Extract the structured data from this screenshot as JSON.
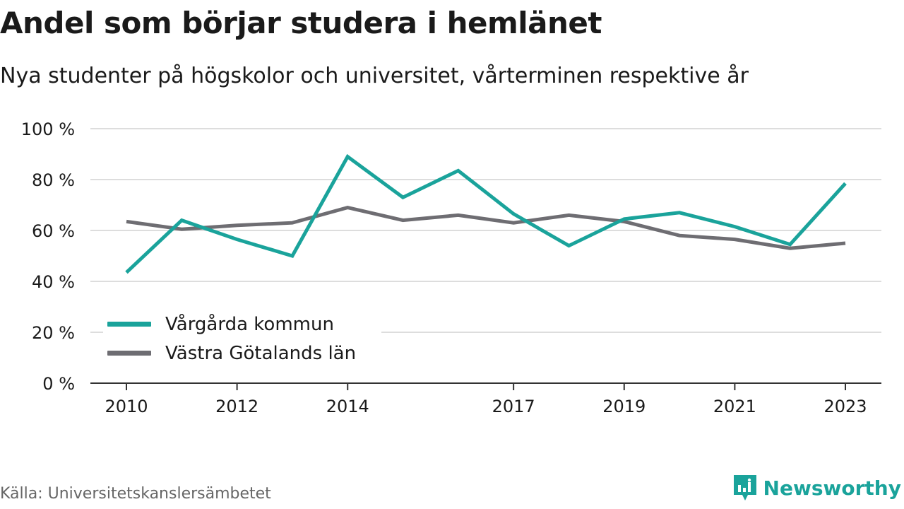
{
  "header": {
    "title": "Andel som börjar studera i hemlänet",
    "subtitle": "Nya studenter på högskolor och universitet, vårterminen respektive år"
  },
  "footer": {
    "source": "Källa: Universitetskanslersämbetet",
    "brand": "Newsworthy",
    "brand_icon": "newsworthy-logo-icon"
  },
  "colors": {
    "series_1": "#1aa39b",
    "series_2": "#6e6d72",
    "grid": "#dddddd",
    "axis": "#333333",
    "brand": "#1aa39b"
  },
  "chart_data": {
    "type": "line",
    "title": "Andel som börjar studera i hemlänet",
    "subtitle": "Nya studenter på högskolor och universitet, vårterminen respektive år",
    "xlabel": "",
    "ylabel": "",
    "x": [
      2010,
      2011,
      2012,
      2013,
      2014,
      2015,
      2016,
      2017,
      2018,
      2019,
      2020,
      2021,
      2022,
      2023
    ],
    "x_tick_labels": [
      "2010",
      "2012",
      "2014",
      "2017",
      "2019",
      "2021",
      "2023"
    ],
    "y_tick_labels": [
      "0 %",
      "20 %",
      "40 %",
      "60 %",
      "80 %",
      "100 %"
    ],
    "ylim": [
      0,
      100
    ],
    "grid": true,
    "legend_position": "bottom-left",
    "series": [
      {
        "name": "Vårgårda kommun",
        "values": [
          43.5,
          64,
          56.5,
          50,
          89,
          73,
          83.5,
          66.5,
          54,
          64.5,
          67,
          61.5,
          54.5,
          78.5
        ]
      },
      {
        "name": "Västra Götalands län",
        "values": [
          63.5,
          60.5,
          62,
          63,
          69,
          64,
          66,
          63,
          66,
          63.5,
          58,
          56.5,
          53,
          55
        ]
      }
    ]
  }
}
